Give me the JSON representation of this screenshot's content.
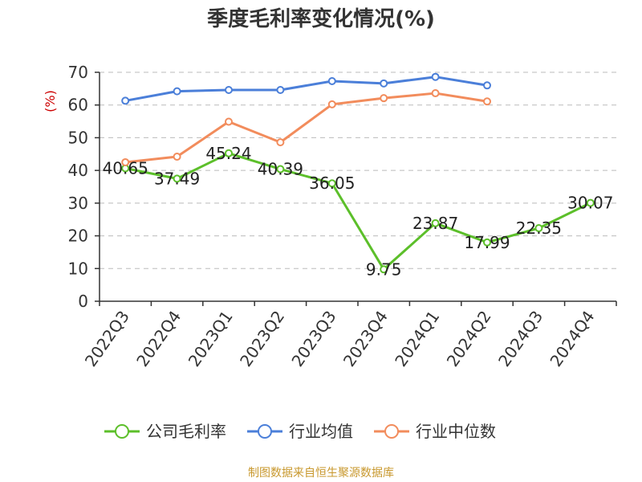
{
  "chart_data": {
    "type": "line",
    "title": "季度毛利率变化情况(%)",
    "ylabel": "(%)",
    "xlabel": "",
    "categories": [
      "2022Q3",
      "2022Q4",
      "2023Q1",
      "2023Q2",
      "2023Q3",
      "2023Q4",
      "2024Q1",
      "2024Q2",
      "2024Q3",
      "2024Q4"
    ],
    "ylim": [
      0,
      70
    ],
    "yticks": [
      0,
      10,
      20,
      30,
      40,
      50,
      60,
      70
    ],
    "grid": true,
    "legend_position": "bottom",
    "series": [
      {
        "name": "公司毛利率",
        "color": "#5cbf2a",
        "values": [
          40.65,
          37.49,
          45.24,
          40.39,
          36.05,
          9.75,
          23.87,
          17.99,
          22.35,
          30.07
        ],
        "labels": [
          "40.65",
          "37.49",
          "45.24",
          "40.39",
          "36.05",
          "9.75",
          "23.87",
          "17.99",
          "22.35",
          "30.07"
        ]
      },
      {
        "name": "行业均值",
        "color": "#4b7fd9",
        "values": [
          61.3,
          64.2,
          64.6,
          64.6,
          67.3,
          66.6,
          68.6,
          66.0,
          null,
          null
        ]
      },
      {
        "name": "行业中位数",
        "color": "#f28c5c",
        "values": [
          42.5,
          44.2,
          54.9,
          48.6,
          60.2,
          62.1,
          63.6,
          61.1,
          null,
          null
        ]
      }
    ],
    "source": "制图数据来自恒生聚源数据库"
  }
}
